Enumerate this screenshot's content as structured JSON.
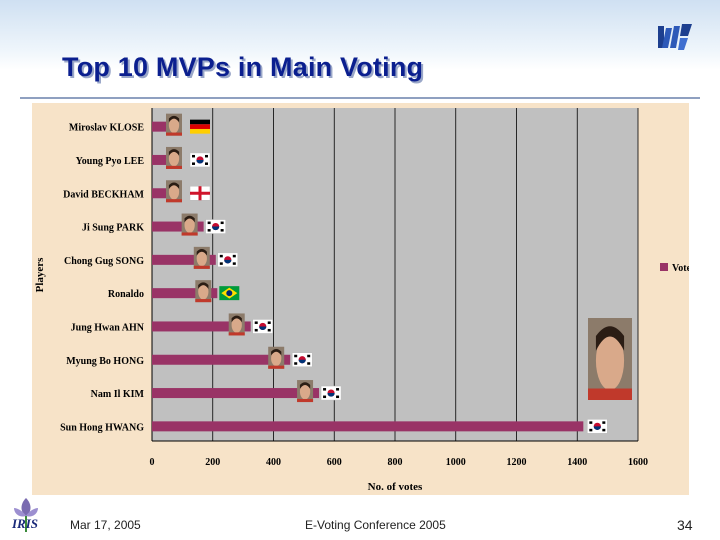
{
  "slide": {
    "title": "Top 10 MVPs in Main Voting",
    "footer_date": "Mar 17, 2005",
    "footer_conference": "E-Voting Conference 2005",
    "page_number": "34",
    "logo_left": "IRIS"
  },
  "chart_data": {
    "type": "bar",
    "orientation": "horizontal",
    "categories": [
      "Miroslav KLOSE",
      "Young Pyo LEE",
      "David BECKHAM",
      "Ji Sung PARK",
      "Chong Gug SONG",
      "Ronaldo",
      "Jung Hwan AHN",
      "Myung Bo HONG",
      "Nam Il KIM",
      "Sun Hong HWANG"
    ],
    "series": [
      {
        "name": "Votes",
        "values": [
          60,
          65,
          85,
          170,
          210,
          215,
          325,
          455,
          550,
          1420
        ]
      }
    ],
    "flags": [
      "germany",
      "korea",
      "england",
      "korea",
      "korea",
      "brazil",
      "korea",
      "korea",
      "korea",
      "korea"
    ],
    "title": "",
    "xlabel": "No. of votes",
    "ylabel": "Players",
    "xlim": [
      0,
      1600
    ],
    "xticks": [
      0,
      200,
      400,
      600,
      800,
      1000,
      1200,
      1400,
      1600
    ],
    "grid": "vertical",
    "legend": "right",
    "colors": {
      "bar": "#993366",
      "plot_bg": "#c0c0c0",
      "outer_bg": "#f7e3c8"
    }
  }
}
